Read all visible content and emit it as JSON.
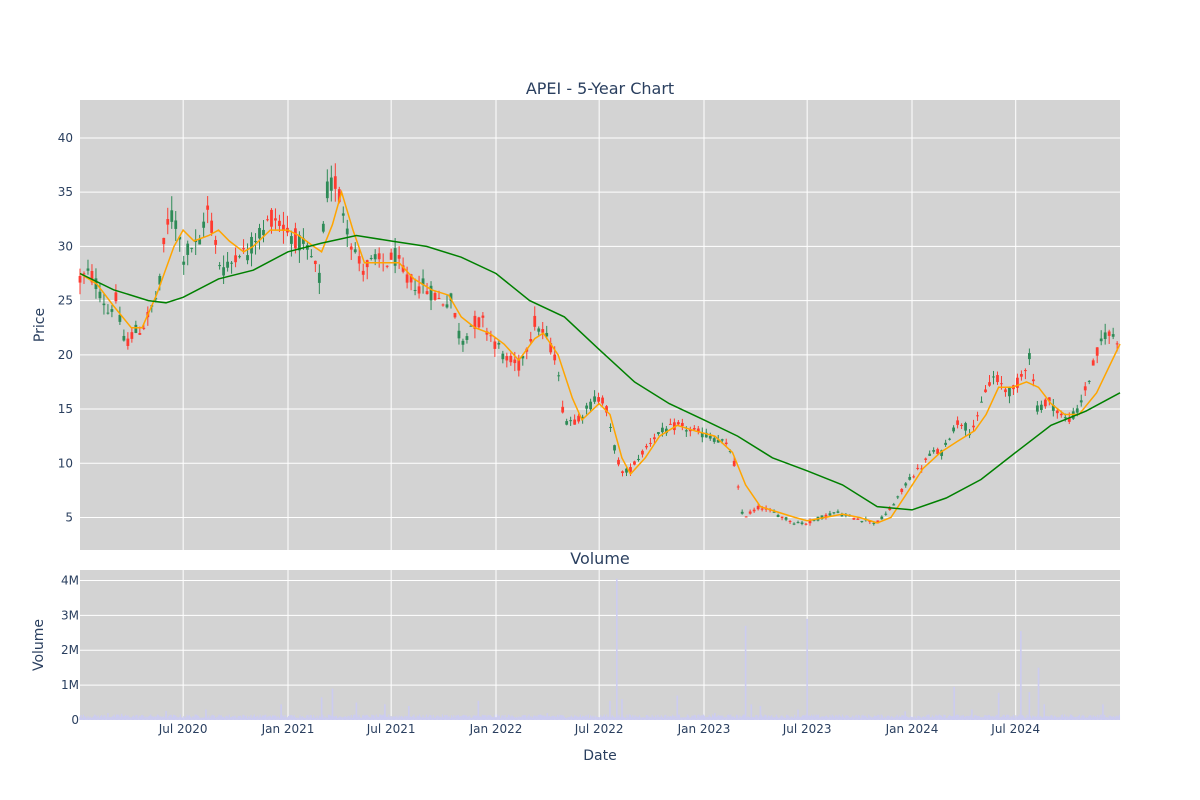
{
  "chart_data": [
    {
      "type": "candlestick",
      "title": "APEI - 5-Year Chart",
      "ylabel": "Price",
      "ylim": [
        2.0,
        43.5
      ],
      "yticks": [
        5,
        10,
        15,
        20,
        25,
        30,
        35,
        40
      ],
      "x_range": [
        "2020-01-02",
        "2024-12-31"
      ],
      "xticks": [
        {
          "date": "2020-07-01",
          "label": "Jul 2020"
        },
        {
          "date": "2021-01-01",
          "label": "Jan 2021"
        },
        {
          "date": "2021-07-01",
          "label": "Jul 2021"
        },
        {
          "date": "2022-01-01",
          "label": "Jan 2022"
        },
        {
          "date": "2022-07-01",
          "label": "Jul 2022"
        },
        {
          "date": "2023-01-01",
          "label": "Jan 2023"
        },
        {
          "date": "2023-07-01",
          "label": "Jul 2023"
        },
        {
          "date": "2024-01-01",
          "label": "Jan 2024"
        },
        {
          "date": "2024-07-01",
          "label": "Jul 2024"
        }
      ],
      "colors": {
        "up": "#2e8b57",
        "down": "#ff3b30",
        "ma_short": "#ffa500",
        "ma_long": "#008000",
        "plot_bg": "#d3d3d3",
        "grid": "#ffffff"
      },
      "price_path": [
        [
          "2020-01-02",
          27.0
        ],
        [
          "2020-01-20",
          27.5
        ],
        [
          "2020-02-05",
          26.0
        ],
        [
          "2020-02-20",
          24.0
        ],
        [
          "2020-03-05",
          25.0
        ],
        [
          "2020-03-20",
          21.0
        ],
        [
          "2020-04-05",
          22.0
        ],
        [
          "2020-04-20",
          22.5
        ],
        [
          "2020-05-05",
          24.0
        ],
        [
          "2020-05-20",
          26.0
        ],
        [
          "2020-06-01",
          32.0
        ],
        [
          "2020-06-15",
          33.0
        ],
        [
          "2020-07-01",
          29.0
        ],
        [
          "2020-07-15",
          30.0
        ],
        [
          "2020-08-01",
          30.0
        ],
        [
          "2020-08-10",
          34.0
        ],
        [
          "2020-08-20",
          32.0
        ],
        [
          "2020-09-05",
          28.0
        ],
        [
          "2020-09-20",
          28.0
        ],
        [
          "2020-10-05",
          30.0
        ],
        [
          "2020-10-20",
          29.0
        ],
        [
          "2020-11-05",
          31.0
        ],
        [
          "2020-11-20",
          31.5
        ],
        [
          "2020-12-05",
          33.0
        ],
        [
          "2020-12-20",
          32.0
        ],
        [
          "2021-01-10",
          31.0
        ],
        [
          "2021-01-25",
          30.0
        ],
        [
          "2021-02-10",
          29.0
        ],
        [
          "2021-02-25",
          27.0
        ],
        [
          "2021-03-10",
          35.0
        ],
        [
          "2021-03-25",
          36.0
        ],
        [
          "2021-04-10",
          33.0
        ],
        [
          "2021-04-25",
          30.0
        ],
        [
          "2021-05-10",
          28.0
        ],
        [
          "2021-06-01",
          28.5
        ],
        [
          "2021-06-20",
          28.5
        ],
        [
          "2021-07-10",
          29.0
        ],
        [
          "2021-07-25",
          27.0
        ],
        [
          "2021-08-15",
          26.5
        ],
        [
          "2021-09-05",
          26.0
        ],
        [
          "2021-09-25",
          25.0
        ],
        [
          "2021-10-15",
          25.0
        ],
        [
          "2021-11-01",
          21.0
        ],
        [
          "2021-11-20",
          23.0
        ],
        [
          "2021-12-10",
          23.0
        ],
        [
          "2022-01-01",
          21.0
        ],
        [
          "2022-01-20",
          19.5
        ],
        [
          "2022-02-10",
          19.0
        ],
        [
          "2022-02-25",
          21.0
        ],
        [
          "2022-03-10",
          23.0
        ],
        [
          "2022-03-25",
          22.0
        ],
        [
          "2022-04-15",
          20.0
        ],
        [
          "2022-05-01",
          14.0
        ],
        [
          "2022-05-20",
          14.0
        ],
        [
          "2022-06-10",
          15.0
        ],
        [
          "2022-06-25",
          16.0
        ],
        [
          "2022-07-10",
          16.0
        ],
        [
          "2022-07-25",
          12.0
        ],
        [
          "2022-08-10",
          9.0
        ],
        [
          "2022-08-25",
          9.5
        ],
        [
          "2022-09-15",
          11.0
        ],
        [
          "2022-10-05",
          12.5
        ],
        [
          "2022-10-25",
          13.0
        ],
        [
          "2022-11-15",
          13.5
        ],
        [
          "2022-12-10",
          13.0
        ],
        [
          "2023-01-10",
          12.5
        ],
        [
          "2023-02-01",
          12.0
        ],
        [
          "2023-02-20",
          11.0
        ],
        [
          "2023-03-10",
          5.0
        ],
        [
          "2023-03-25",
          5.5
        ],
        [
          "2023-04-10",
          6.0
        ],
        [
          "2023-05-01",
          5.5
        ],
        [
          "2023-05-20",
          5.0
        ],
        [
          "2023-06-10",
          4.5
        ],
        [
          "2023-07-01",
          4.5
        ],
        [
          "2023-07-25",
          5.0
        ],
        [
          "2023-08-20",
          5.5
        ],
        [
          "2023-09-15",
          5.0
        ],
        [
          "2023-10-10",
          4.8
        ],
        [
          "2023-11-01",
          4.5
        ],
        [
          "2023-11-20",
          5.5
        ],
        [
          "2023-12-10",
          7.0
        ],
        [
          "2023-12-25",
          8.5
        ],
        [
          "2024-01-15",
          9.5
        ],
        [
          "2024-02-05",
          11.0
        ],
        [
          "2024-02-25",
          11.0
        ],
        [
          "2024-03-10",
          13.0
        ],
        [
          "2024-03-25",
          14.0
        ],
        [
          "2024-04-10",
          13.0
        ],
        [
          "2024-04-25",
          14.0
        ],
        [
          "2024-05-10",
          17.0
        ],
        [
          "2024-05-25",
          18.0
        ],
        [
          "2024-06-10",
          17.0
        ],
        [
          "2024-06-25",
          16.5
        ],
        [
          "2024-07-10",
          18.0
        ],
        [
          "2024-07-25",
          20.0
        ],
        [
          "2024-08-10",
          14.5
        ],
        [
          "2024-08-25",
          16.0
        ],
        [
          "2024-09-10",
          15.0
        ],
        [
          "2024-09-25",
          14.0
        ],
        [
          "2024-10-15",
          14.5
        ],
        [
          "2024-11-05",
          17.5
        ],
        [
          "2024-11-20",
          20.0
        ],
        [
          "2024-12-05",
          22.0
        ],
        [
          "2024-12-31",
          21.5
        ]
      ],
      "series": [
        {
          "line": "short",
          "points": [
            [
              "2020-01-02",
              27.5
            ],
            [
              "2020-02-01",
              26.5
            ],
            [
              "2020-03-01",
              24.5
            ],
            [
              "2020-04-01",
              22.5
            ],
            [
              "2020-04-20",
              22.5
            ],
            [
              "2020-05-15",
              25.5
            ],
            [
              "2020-06-15",
              30.0
            ],
            [
              "2020-07-01",
              31.5
            ],
            [
              "2020-07-20",
              30.5
            ],
            [
              "2020-08-15",
              31.0
            ],
            [
              "2020-09-01",
              31.5
            ],
            [
              "2020-09-20",
              30.5
            ],
            [
              "2020-10-15",
              29.5
            ],
            [
              "2020-11-01",
              30.0
            ],
            [
              "2020-12-01",
              31.5
            ],
            [
              "2021-01-01",
              31.5
            ],
            [
              "2021-01-20",
              31.0
            ],
            [
              "2021-02-15",
              30.0
            ],
            [
              "2021-03-01",
              29.5
            ],
            [
              "2021-03-20",
              32.0
            ],
            [
              "2021-04-05",
              35.0
            ],
            [
              "2021-04-25",
              31.5
            ],
            [
              "2021-05-15",
              28.5
            ],
            [
              "2021-06-15",
              28.5
            ],
            [
              "2021-07-15",
              28.5
            ],
            [
              "2021-08-10",
              27.0
            ],
            [
              "2021-09-10",
              26.0
            ],
            [
              "2021-10-10",
              25.5
            ],
            [
              "2021-11-01",
              23.5
            ],
            [
              "2021-11-25",
              22.5
            ],
            [
              "2021-12-20",
              22.0
            ],
            [
              "2022-01-15",
              21.0
            ],
            [
              "2022-02-10",
              19.5
            ],
            [
              "2022-03-10",
              21.5
            ],
            [
              "2022-03-25",
              22.0
            ],
            [
              "2022-04-20",
              20.0
            ],
            [
              "2022-05-15",
              16.0
            ],
            [
              "2022-06-01",
              14.0
            ],
            [
              "2022-07-01",
              15.5
            ],
            [
              "2022-07-20",
              14.5
            ],
            [
              "2022-08-10",
              10.5
            ],
            [
              "2022-08-25",
              9.0
            ],
            [
              "2022-09-20",
              10.5
            ],
            [
              "2022-10-15",
              12.5
            ],
            [
              "2022-11-15",
              13.5
            ],
            [
              "2022-12-15",
              13.0
            ],
            [
              "2023-01-20",
              12.5
            ],
            [
              "2023-02-20",
              11.0
            ],
            [
              "2023-03-15",
              8.0
            ],
            [
              "2023-04-10",
              6.0
            ],
            [
              "2023-05-10",
              5.5
            ],
            [
              "2023-06-10",
              5.0
            ],
            [
              "2023-07-01",
              4.7
            ],
            [
              "2023-08-01",
              5.0
            ],
            [
              "2023-09-01",
              5.3
            ],
            [
              "2023-10-01",
              5.0
            ],
            [
              "2023-11-01",
              4.5
            ],
            [
              "2023-11-25",
              5.0
            ],
            [
              "2023-12-20",
              7.0
            ],
            [
              "2024-01-20",
              9.5
            ],
            [
              "2024-02-20",
              11.0
            ],
            [
              "2024-03-20",
              12.0
            ],
            [
              "2024-04-20",
              13.0
            ],
            [
              "2024-05-10",
              14.5
            ],
            [
              "2024-06-01",
              17.0
            ],
            [
              "2024-06-25",
              17.0
            ],
            [
              "2024-07-20",
              17.5
            ],
            [
              "2024-08-10",
              17.0
            ],
            [
              "2024-09-01",
              15.5
            ],
            [
              "2024-09-25",
              14.5
            ],
            [
              "2024-10-20",
              14.5
            ],
            [
              "2024-11-20",
              16.5
            ],
            [
              "2024-12-31",
              21.0
            ]
          ]
        },
        {
          "line": "long",
          "points": [
            [
              "2020-01-02",
              27.5
            ],
            [
              "2020-03-01",
              26.0
            ],
            [
              "2020-05-01",
              25.0
            ],
            [
              "2020-06-01",
              24.8
            ],
            [
              "2020-07-01",
              25.3
            ],
            [
              "2020-09-01",
              27.0
            ],
            [
              "2020-11-01",
              27.8
            ],
            [
              "2021-01-01",
              29.5
            ],
            [
              "2021-03-01",
              30.3
            ],
            [
              "2021-05-01",
              31.0
            ],
            [
              "2021-07-01",
              30.5
            ],
            [
              "2021-09-01",
              30.0
            ],
            [
              "2021-11-01",
              29.0
            ],
            [
              "2022-01-01",
              27.5
            ],
            [
              "2022-03-01",
              25.0
            ],
            [
              "2022-05-01",
              23.5
            ],
            [
              "2022-07-01",
              20.5
            ],
            [
              "2022-09-01",
              17.5
            ],
            [
              "2022-11-01",
              15.5
            ],
            [
              "2023-01-01",
              14.0
            ],
            [
              "2023-03-01",
              12.5
            ],
            [
              "2023-05-01",
              10.5
            ],
            [
              "2023-07-01",
              9.3
            ],
            [
              "2023-09-01",
              8.0
            ],
            [
              "2023-11-01",
              6.0
            ],
            [
              "2024-01-01",
              5.7
            ],
            [
              "2024-03-01",
              6.8
            ],
            [
              "2024-05-01",
              8.5
            ],
            [
              "2024-07-01",
              11.0
            ],
            [
              "2024-09-01",
              13.5
            ],
            [
              "2024-11-01",
              14.8
            ],
            [
              "2024-12-31",
              16.5
            ]
          ]
        }
      ]
    },
    {
      "type": "bar",
      "title": "Volume",
      "xlabel": "Date",
      "ylabel": "Volume",
      "ylim": [
        0,
        4300000
      ],
      "yticks": [
        {
          "value": 0,
          "label": "0"
        },
        {
          "value": 1000000,
          "label": "1M"
        },
        {
          "value": 2000000,
          "label": "2M"
        },
        {
          "value": 3000000,
          "label": "3M"
        },
        {
          "value": 4000000,
          "label": "4M"
        }
      ],
      "bar_color": "#ccccf0",
      "base_volume": 110000,
      "spikes": [
        [
          "2020-02-20",
          200000
        ],
        [
          "2020-03-15",
          180000
        ],
        [
          "2020-06-01",
          260000
        ],
        [
          "2020-08-10",
          300000
        ],
        [
          "2020-12-20",
          450000
        ],
        [
          "2021-03-01",
          650000
        ],
        [
          "2021-03-20",
          900000
        ],
        [
          "2021-05-01",
          500000
        ],
        [
          "2021-06-20",
          450000
        ],
        [
          "2021-08-01",
          400000
        ],
        [
          "2021-12-01",
          550000
        ],
        [
          "2022-04-01",
          200000
        ],
        [
          "2022-07-20",
          550000
        ],
        [
          "2022-08-01",
          4050000
        ],
        [
          "2022-08-10",
          600000
        ],
        [
          "2022-11-15",
          700000
        ],
        [
          "2023-01-20",
          200000
        ],
        [
          "2023-03-15",
          2700000
        ],
        [
          "2023-03-25",
          450000
        ],
        [
          "2023-04-10",
          400000
        ],
        [
          "2023-06-15",
          300000
        ],
        [
          "2023-07-01",
          2900000
        ],
        [
          "2023-12-20",
          250000
        ],
        [
          "2024-03-15",
          950000
        ],
        [
          "2024-04-15",
          300000
        ],
        [
          "2024-06-01",
          780000
        ],
        [
          "2024-07-10",
          2550000
        ],
        [
          "2024-07-25",
          800000
        ],
        [
          "2024-08-10",
          1500000
        ],
        [
          "2024-08-20",
          450000
        ],
        [
          "2024-12-01",
          450000
        ]
      ]
    }
  ]
}
